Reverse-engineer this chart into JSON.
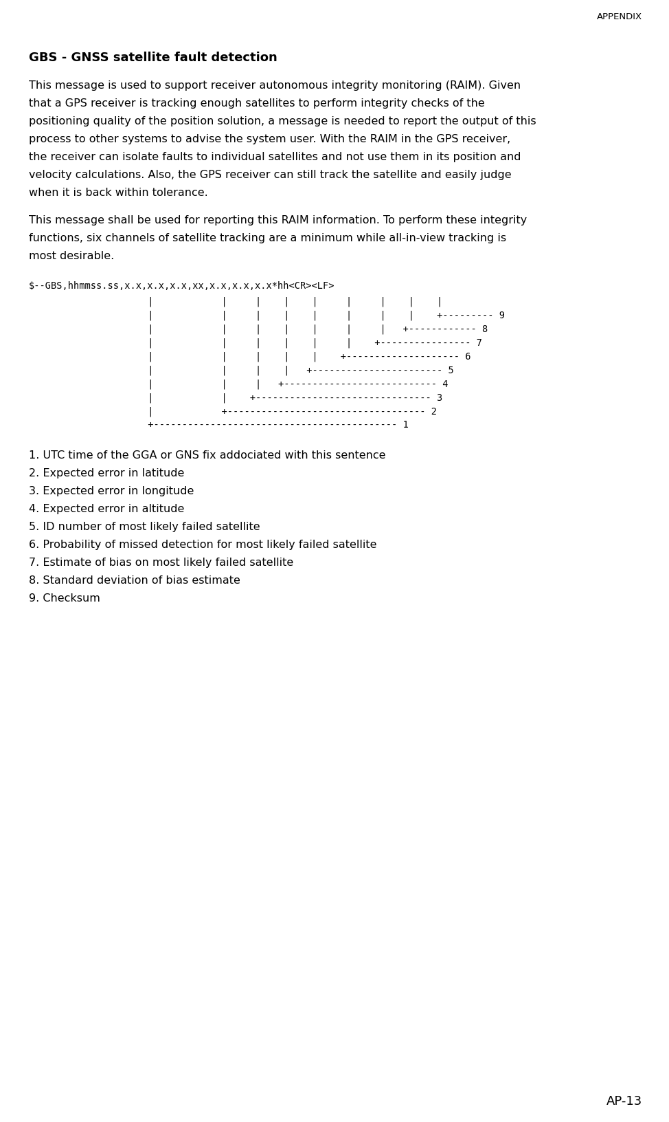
{
  "header": "APPENDIX",
  "title": "GBS - GNSS satellite fault detection",
  "para1": "This message is used to support receiver autonomous integrity monitoring (RAIM). Given that a GPS receiver is tracking enough satellites to perform integrity checks of the positioning quality of the position solution, a message is needed to report the output of this process to other systems to advise the system user. With the RAIM in the GPS receiver, the receiver can isolate faults to individual satellites and not use them in its position and velocity calculations. Also, the GPS receiver can still track the satellite and easily judge when it is back within tolerance.",
  "para2": "This message shall be used for reporting this RAIM information. To perform these integrity functions, six channels of satellite tracking are a minimum while all-in-view tracking is most desirable.",
  "sentence_line": "$--GBS,hhmmss.ss,x.x,x.x,x.x,xx,x.x,x.x,x.x*hh<CR><LF>",
  "diagram_lines": [
    "                     |            |     |    |    |     |     |    |    |",
    "                     |            |     |    |    |     |     |    |    +--------- 9",
    "                     |            |     |    |    |     |     |   +------------ 8",
    "                     |            |     |    |    |     |    +---------------- 7",
    "                     |            |     |    |    |    +-------------------- 6",
    "                     |            |     |    |   +----------------------- 5",
    "                     |            |     |   +--------------------------- 4",
    "                     |            |    +------------------------------- 3",
    "                     |            +----------------------------------- 2",
    "                     +------------------------------------------- 1"
  ],
  "field_list": [
    "1. UTC time of the GGA or GNS fix addociated with this sentence",
    "2. Expected error in latitude",
    "3. Expected error in longitude",
    "4. Expected error in altitude",
    "5. ID number of most likely failed satellite",
    "6. Probability of missed detection for most likely failed satellite",
    "7. Estimate of bias on most likely failed satellite",
    "8. Standard deviation of bias estimate",
    "9. Checksum"
  ],
  "footer": "AP-13",
  "bg_color": "#ffffff",
  "text_color": "#000000",
  "para1_lines": [
    "This message is used to support receiver autonomous integrity monitoring (RAIM). Given",
    "that a GPS receiver is tracking enough satellites to perform integrity checks of the",
    "positioning quality of the position solution, a message is needed to report the output of this",
    "process to other systems to advise the system user. With the RAIM in the GPS receiver,",
    "the receiver can isolate faults to individual satellites and not use them in its position and",
    "velocity calculations. Also, the GPS receiver can still track the satellite and easily judge",
    "when it is back within tolerance."
  ],
  "para2_lines": [
    "This message shall be used for reporting this RAIM information. To perform these integrity",
    "functions, six channels of satellite tracking are a minimum while all-in-view tracking is",
    "most desirable."
  ]
}
